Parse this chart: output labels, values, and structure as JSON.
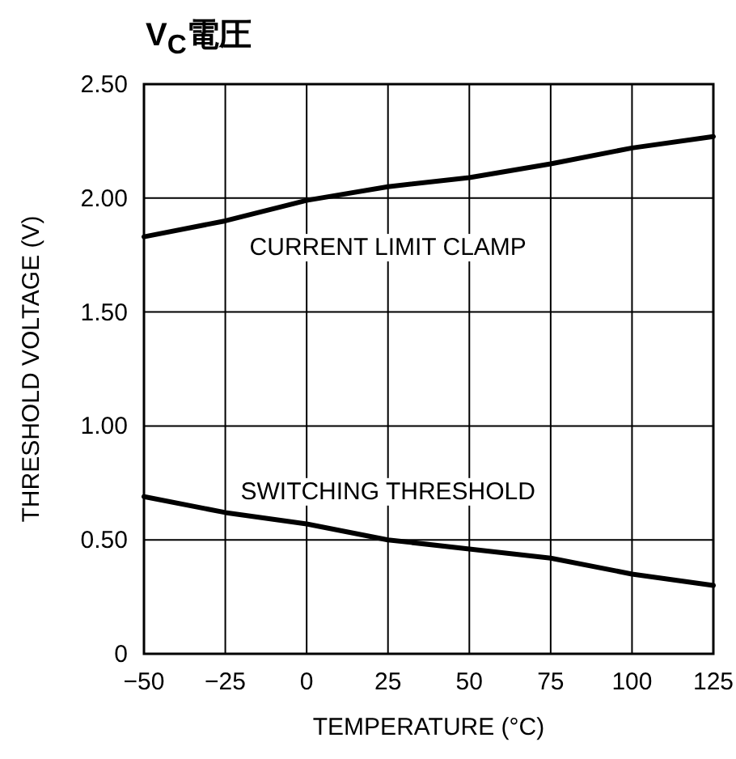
{
  "chart_data": {
    "type": "line",
    "title": "V$_{C}$電圧",
    "xlabel": "TEMPERATURE (°C)",
    "ylabel": "THRESHOLD VOLTAGE (V)",
    "x": [
      -50,
      -25,
      0,
      25,
      50,
      75,
      100,
      125
    ],
    "series": [
      {
        "name": "CURRENT LIMIT CLAMP",
        "color": "#000000",
        "values": [
          1.83,
          1.9,
          1.99,
          2.05,
          2.09,
          2.15,
          2.22,
          2.27
        ]
      },
      {
        "name": "SWITCHING THRESHOLD",
        "color": "#000000",
        "values": [
          0.69,
          0.62,
          0.57,
          0.5,
          0.46,
          0.42,
          0.35,
          0.3
        ]
      }
    ],
    "xlim": [
      -50,
      125
    ],
    "xticks": [
      {
        "value": -50,
        "label": "−50"
      },
      {
        "value": -25,
        "label": "−25"
      },
      0,
      25,
      50,
      75,
      100,
      125
    ],
    "ylim": [
      0,
      2.5
    ],
    "yticks": [
      0,
      {
        "value": 0.5,
        "label": "0.50"
      },
      {
        "value": 1,
        "label": "1.00"
      },
      {
        "value": 1.5,
        "label": "1.50"
      },
      {
        "value": 2,
        "label": "2.00"
      },
      {
        "value": 2.5,
        "label": "2.50"
      }
    ],
    "grid": true,
    "legend": false,
    "marker": "none",
    "line_style": "solid"
  }
}
